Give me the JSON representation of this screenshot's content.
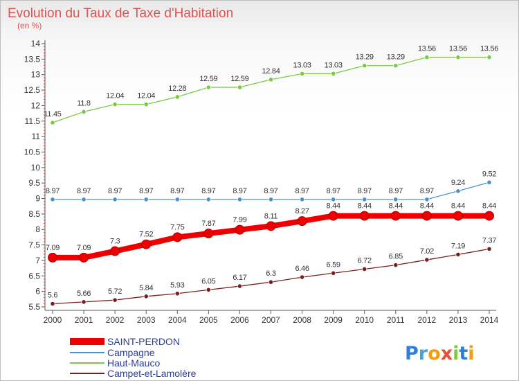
{
  "chart_data": {
    "type": "line",
    "title": "Evolution du Taux de Taxe d'Habitation",
    "subtitle": "(en %)",
    "xlabel": "",
    "ylabel": "",
    "x": [
      "2000",
      "2001",
      "2002",
      "2003",
      "2004",
      "2005",
      "2006",
      "2007",
      "2008",
      "2009",
      "2010",
      "2011",
      "2012",
      "2013",
      "2014"
    ],
    "ylim": [
      5.5,
      14
    ],
    "yticks": [
      "5.5",
      "6",
      "6.5",
      "7",
      "7.5",
      "8",
      "8.5",
      "9",
      "9.5",
      "10",
      "10.5",
      "11",
      "11.5",
      "12",
      "12.5",
      "13",
      "13.5",
      "14"
    ],
    "grid": false,
    "legend_position": "bottom-left",
    "series": [
      {
        "name": "SAINT-PERDON",
        "color": "#ee0000",
        "values": [
          7.09,
          7.09,
          7.3,
          7.52,
          7.75,
          7.87,
          7.99,
          8.11,
          8.27,
          8.44,
          8.44,
          8.44,
          8.44,
          8.44,
          8.44
        ],
        "labels": [
          "7.09",
          "7.09",
          "7.3",
          "7.52",
          "7.75",
          "7.87",
          "7.99",
          "8.11",
          "8.27",
          "8.44",
          "8.44",
          "8.44",
          "8.44",
          "8.44",
          "8.44"
        ]
      },
      {
        "name": "Campagne",
        "color": "#4a8fd0",
        "values": [
          8.97,
          8.97,
          8.97,
          8.97,
          8.97,
          8.97,
          8.97,
          8.97,
          8.97,
          8.97,
          8.97,
          8.97,
          8.97,
          9.24,
          9.52
        ],
        "labels": [
          "8.97",
          "8.97",
          "8.97",
          "8.97",
          "8.97",
          "8.97",
          "8.97",
          "8.97",
          "8.97",
          "8.97",
          "8.97",
          "8.97",
          "8.97",
          "9.24",
          "9.52"
        ]
      },
      {
        "name": "Haut-Mauco",
        "color": "#7ac943",
        "values": [
          11.45,
          11.8,
          12.04,
          12.04,
          12.28,
          12.59,
          12.59,
          12.84,
          13.03,
          13.03,
          13.29,
          13.29,
          13.56,
          13.56,
          13.56
        ],
        "labels": [
          "11.45",
          "11.8",
          "12.04",
          "12.04",
          "12.28",
          "12.59",
          "12.59",
          "12.84",
          "13.03",
          "13.03",
          "13.29",
          "13.29",
          "13.56",
          "13.56",
          "13.56"
        ]
      },
      {
        "name": "Campet-et-Lamolère",
        "color": "#7a1f1f",
        "values": [
          5.6,
          5.66,
          5.72,
          5.84,
          5.93,
          6.05,
          6.17,
          6.3,
          6.46,
          6.59,
          6.72,
          6.85,
          7.02,
          7.19,
          7.37
        ],
        "labels": [
          "5.6",
          "5.66",
          "5.72",
          "5.84",
          "5.93",
          "6.05",
          "6.17",
          "6.3",
          "6.46",
          "6.59",
          "6.72",
          "6.85",
          "7.02",
          "7.19",
          "7.37"
        ]
      }
    ]
  },
  "legend": {
    "items": [
      {
        "label": "SAINT-PERDON",
        "color": "#ee0000"
      },
      {
        "label": "Campagne",
        "color": "#4a8fd0"
      },
      {
        "label": "Haut-Mauco",
        "color": "#7ac943"
      },
      {
        "label": "Campet-et-Lamolère",
        "color": "#7a1f1f"
      }
    ]
  },
  "logo": {
    "letters": [
      "P",
      "r",
      "o",
      "x",
      "i",
      "t",
      "i"
    ],
    "colors": [
      "#2f7fd6",
      "#3aa7e0",
      "#f39c12",
      "#e74c3c",
      "#7ac943",
      "#2f7fd6",
      "#f39c12"
    ]
  }
}
